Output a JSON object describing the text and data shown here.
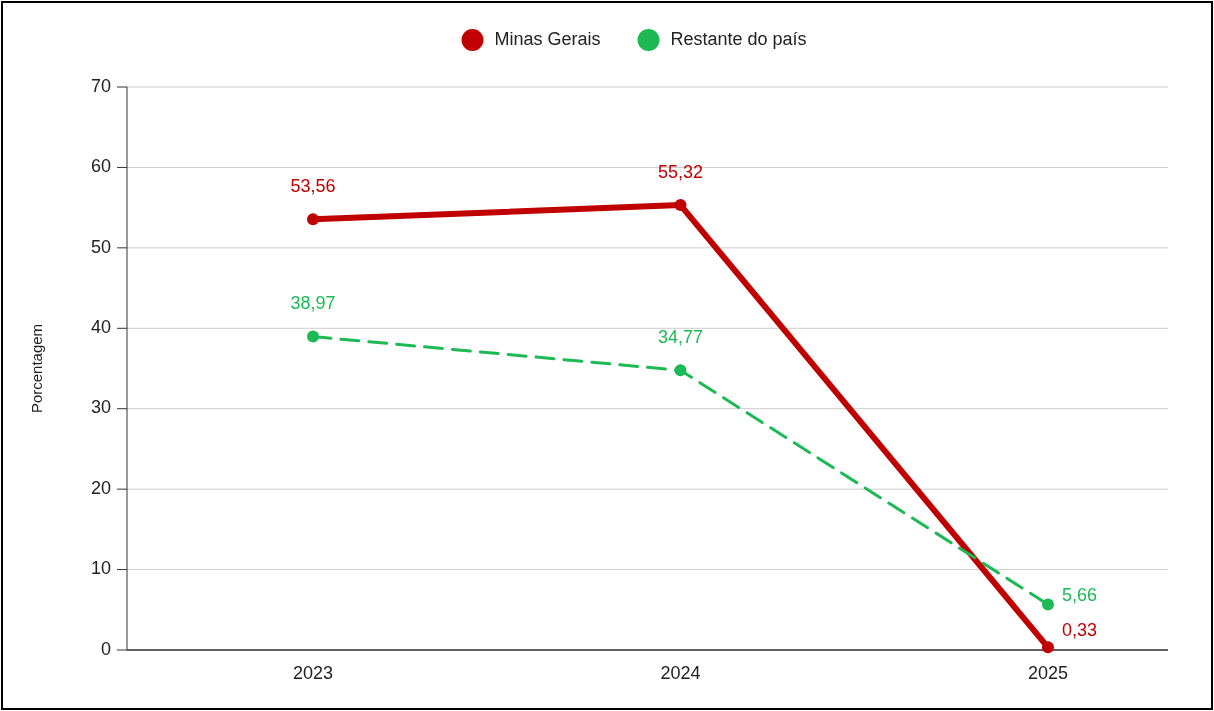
{
  "chart_data": {
    "type": "line",
    "ylabel": "Porcentagem",
    "categories": [
      "2023",
      "2024",
      "2025"
    ],
    "series": [
      {
        "name": "Minas Gerais",
        "color": "#c00000",
        "values": [
          53.56,
          55.32,
          0.33
        ],
        "value_labels": [
          "53,56",
          "55,32",
          "0,33"
        ],
        "line_style": "solid"
      },
      {
        "name": "Restante do país",
        "color": "#1db954",
        "values": [
          38.97,
          34.77,
          5.66
        ],
        "value_labels": [
          "38,97",
          "34,77",
          "5,66"
        ],
        "line_style": "dashed"
      }
    ],
    "ylim": [
      0,
      70
    ],
    "yticks": [
      0,
      10,
      20,
      30,
      40,
      50,
      60,
      70
    ],
    "grid": "y",
    "legend": "top",
    "marker": "circle"
  }
}
